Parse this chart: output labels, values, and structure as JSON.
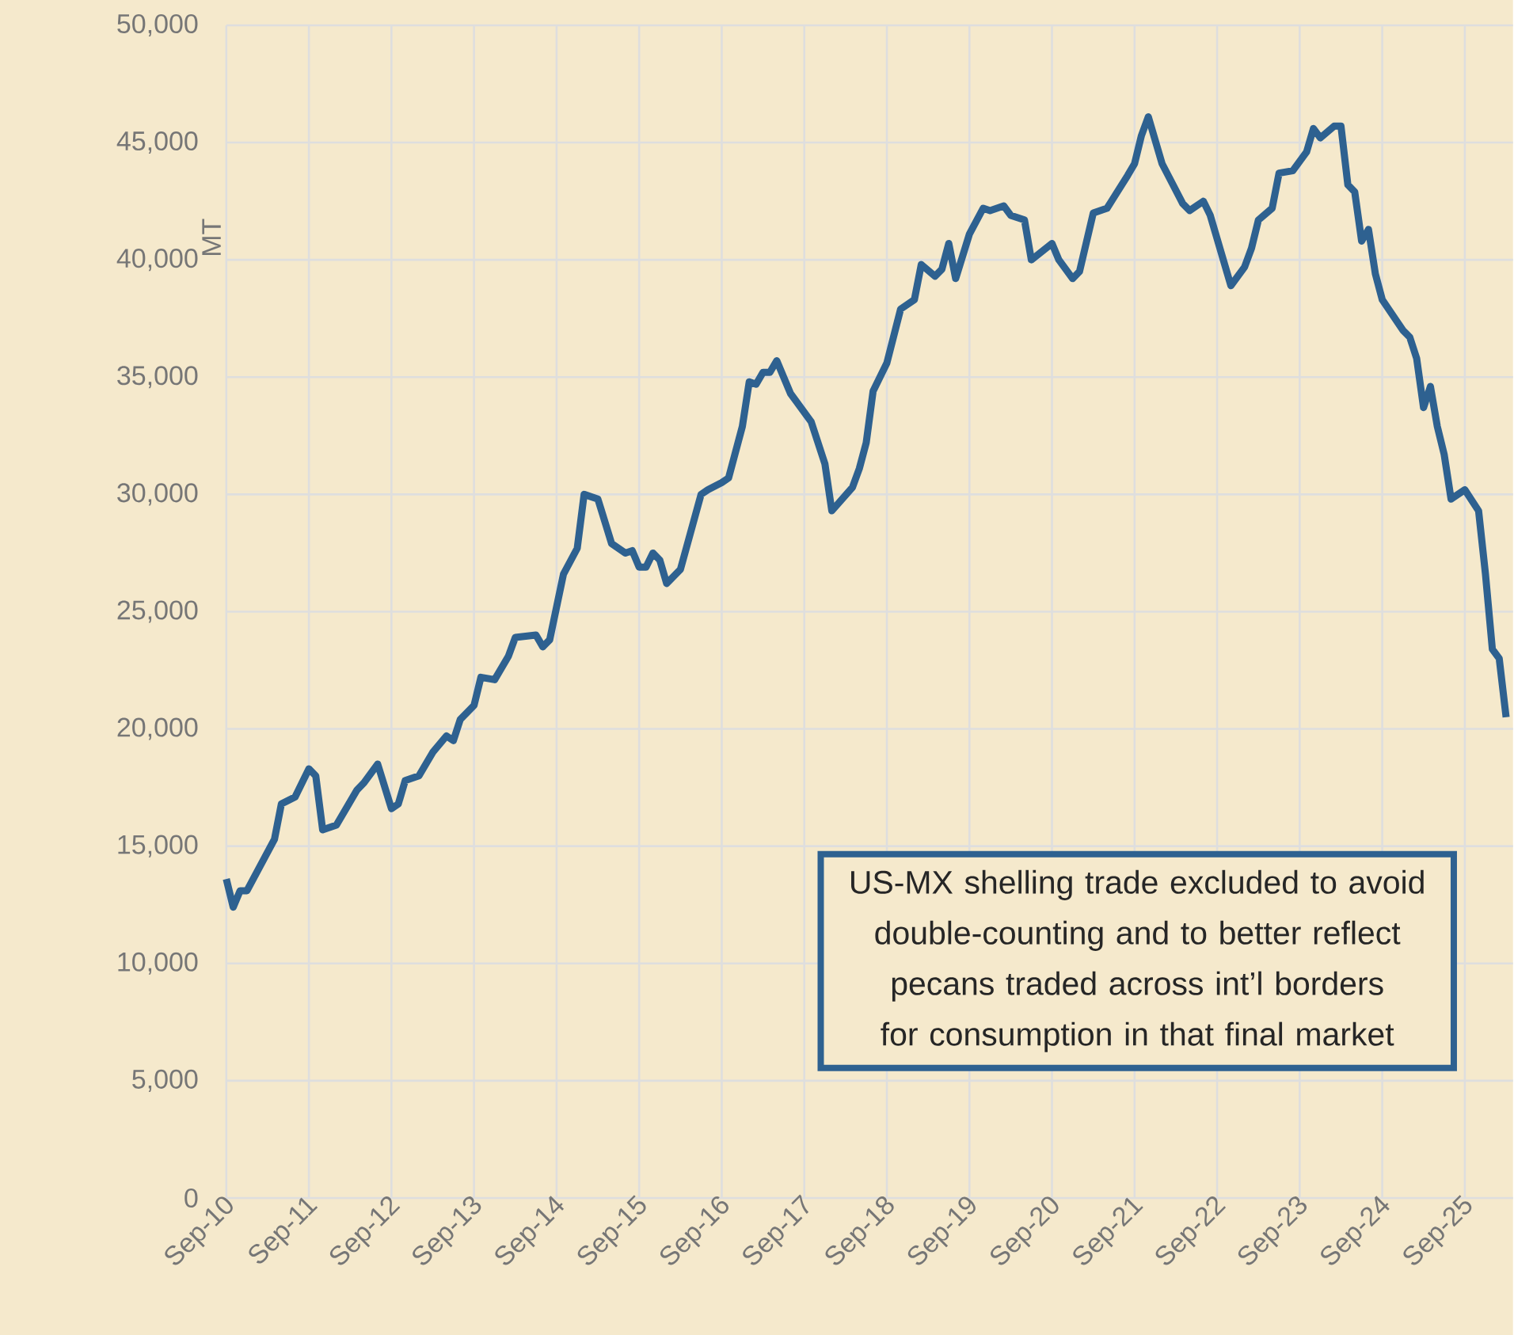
{
  "chart_data": {
    "type": "line",
    "ylabel": "MT",
    "x": [
      "2010-09",
      "2010-10",
      "2010-11",
      "2010-12",
      "2011-02",
      "2011-04",
      "2011-05",
      "2011-07",
      "2011-09",
      "2011-10",
      "2011-11",
      "2012-01",
      "2012-04",
      "2012-05",
      "2012-07",
      "2012-09",
      "2012-10",
      "2012-11",
      "2013-01",
      "2013-03",
      "2013-05",
      "2013-06",
      "2013-07",
      "2013-09",
      "2013-10",
      "2013-12",
      "2014-02",
      "2014-03",
      "2014-06",
      "2014-07",
      "2014-08",
      "2014-10",
      "2014-12",
      "2015-01",
      "2015-03",
      "2015-05",
      "2015-07",
      "2015-08",
      "2015-09",
      "2015-10",
      "2015-11",
      "2015-12",
      "2016-01",
      "2016-03",
      "2016-06",
      "2016-07",
      "2016-09",
      "2016-10",
      "2016-12",
      "2017-01",
      "2017-02",
      "2017-03",
      "2017-04",
      "2017-05",
      "2017-07",
      "2017-10",
      "2017-12",
      "2018-01",
      "2018-04",
      "2018-05",
      "2018-06",
      "2018-07",
      "2018-09",
      "2018-11",
      "2019-01",
      "2019-02",
      "2019-04",
      "2019-05",
      "2019-06",
      "2019-07",
      "2019-09",
      "2019-11",
      "2019-12",
      "2020-02",
      "2020-03",
      "2020-05",
      "2020-06",
      "2020-09",
      "2020-10",
      "2020-12",
      "2021-01",
      "2021-03",
      "2021-05",
      "2021-08",
      "2021-09",
      "2021-10",
      "2021-11",
      "2022-01",
      "2022-04",
      "2022-05",
      "2022-07",
      "2022-08",
      "2022-11",
      "2023-01",
      "2023-02",
      "2023-03",
      "2023-05",
      "2023-06",
      "2023-08",
      "2023-10",
      "2023-11",
      "2023-12",
      "2024-02",
      "2024-03",
      "2024-04",
      "2024-05",
      "2024-06",
      "2024-07",
      "2024-08",
      "2024-09",
      "2024-12",
      "2025-01",
      "2025-02",
      "2025-03",
      "2025-04",
      "2025-05",
      "2025-06",
      "2025-07",
      "2025-09",
      "2025-11",
      "2025-12",
      "2026-01",
      "2026-02",
      "2026-03"
    ],
    "series": [
      {
        "color": "#2e6190",
        "values": [
          13600,
          12400,
          13100,
          13100,
          14200,
          15300,
          16800,
          17100,
          18300,
          18000,
          15700,
          15900,
          17400,
          17700,
          18500,
          16600,
          16800,
          17800,
          18000,
          19000,
          19700,
          19500,
          20400,
          21000,
          22200,
          22100,
          23100,
          23900,
          24000,
          23500,
          23800,
          26600,
          27700,
          30000,
          29800,
          27900,
          27500,
          27600,
          26900,
          26900,
          27500,
          27200,
          26200,
          26800,
          30000,
          30200,
          30500,
          30700,
          32900,
          34800,
          34700,
          35200,
          35200,
          35700,
          34300,
          33100,
          31300,
          29300,
          30300,
          31100,
          32200,
          34400,
          35600,
          37900,
          38300,
          39800,
          39300,
          39600,
          40700,
          39200,
          41100,
          42200,
          42100,
          42300,
          41900,
          41700,
          40000,
          40700,
          40000,
          39200,
          39500,
          42000,
          42200,
          43600,
          44100,
          45300,
          46100,
          44100,
          42400,
          42100,
          42500,
          41900,
          38900,
          39700,
          40500,
          41700,
          42200,
          43700,
          43800,
          44600,
          45600,
          45200,
          45700,
          45700,
          43200,
          42900,
          40800,
          41300,
          39400,
          38300,
          37000,
          36700,
          35800,
          33700,
          34600,
          32900,
          31700,
          29800,
          30200,
          29300,
          26600,
          23400,
          23000,
          20500
        ]
      }
    ],
    "xlim": [
      "2010-09",
      "2026-04"
    ],
    "xticks": [
      {
        "value": "2010-09",
        "label": "Sep-10"
      },
      {
        "value": "2011-09",
        "label": "Sep-11"
      },
      {
        "value": "2012-09",
        "label": "Sep-12"
      },
      {
        "value": "2013-09",
        "label": "Sep-13"
      },
      {
        "value": "2014-09",
        "label": "Sep-14"
      },
      {
        "value": "2015-09",
        "label": "Sep-15"
      },
      {
        "value": "2016-09",
        "label": "Sep-16"
      },
      {
        "value": "2017-09",
        "label": "Sep-17"
      },
      {
        "value": "2018-09",
        "label": "Sep-18"
      },
      {
        "value": "2019-09",
        "label": "Sep-19"
      },
      {
        "value": "2020-09",
        "label": "Sep-20"
      },
      {
        "value": "2021-09",
        "label": "Sep-21"
      },
      {
        "value": "2022-09",
        "label": "Sep-22"
      },
      {
        "value": "2023-09",
        "label": "Sep-23"
      },
      {
        "value": "2024-09",
        "label": "Sep-24"
      },
      {
        "value": "2025-09",
        "label": "Sep-25"
      }
    ],
    "ylim": [
      0,
      50000
    ],
    "yticks": [
      0,
      {
        "value": 5000,
        "label": "5,000"
      },
      {
        "value": 10000,
        "label": "10,000"
      },
      {
        "value": 15000,
        "label": "15,000"
      },
      {
        "value": 20000,
        "label": "20,000"
      },
      {
        "value": 25000,
        "label": "25,000"
      },
      {
        "value": 30000,
        "label": "30,000"
      },
      {
        "value": 35000,
        "label": "35,000"
      },
      {
        "value": 40000,
        "label": "40,000"
      },
      {
        "value": 45000,
        "label": "45,000"
      },
      {
        "value": 50000,
        "label": "50,000"
      }
    ],
    "grid": true,
    "annotations": [
      "US-MX shelling trade excluded to avoid double-counting and to better reflect pecans traded across int’l borders for consumption in that final market"
    ]
  }
}
